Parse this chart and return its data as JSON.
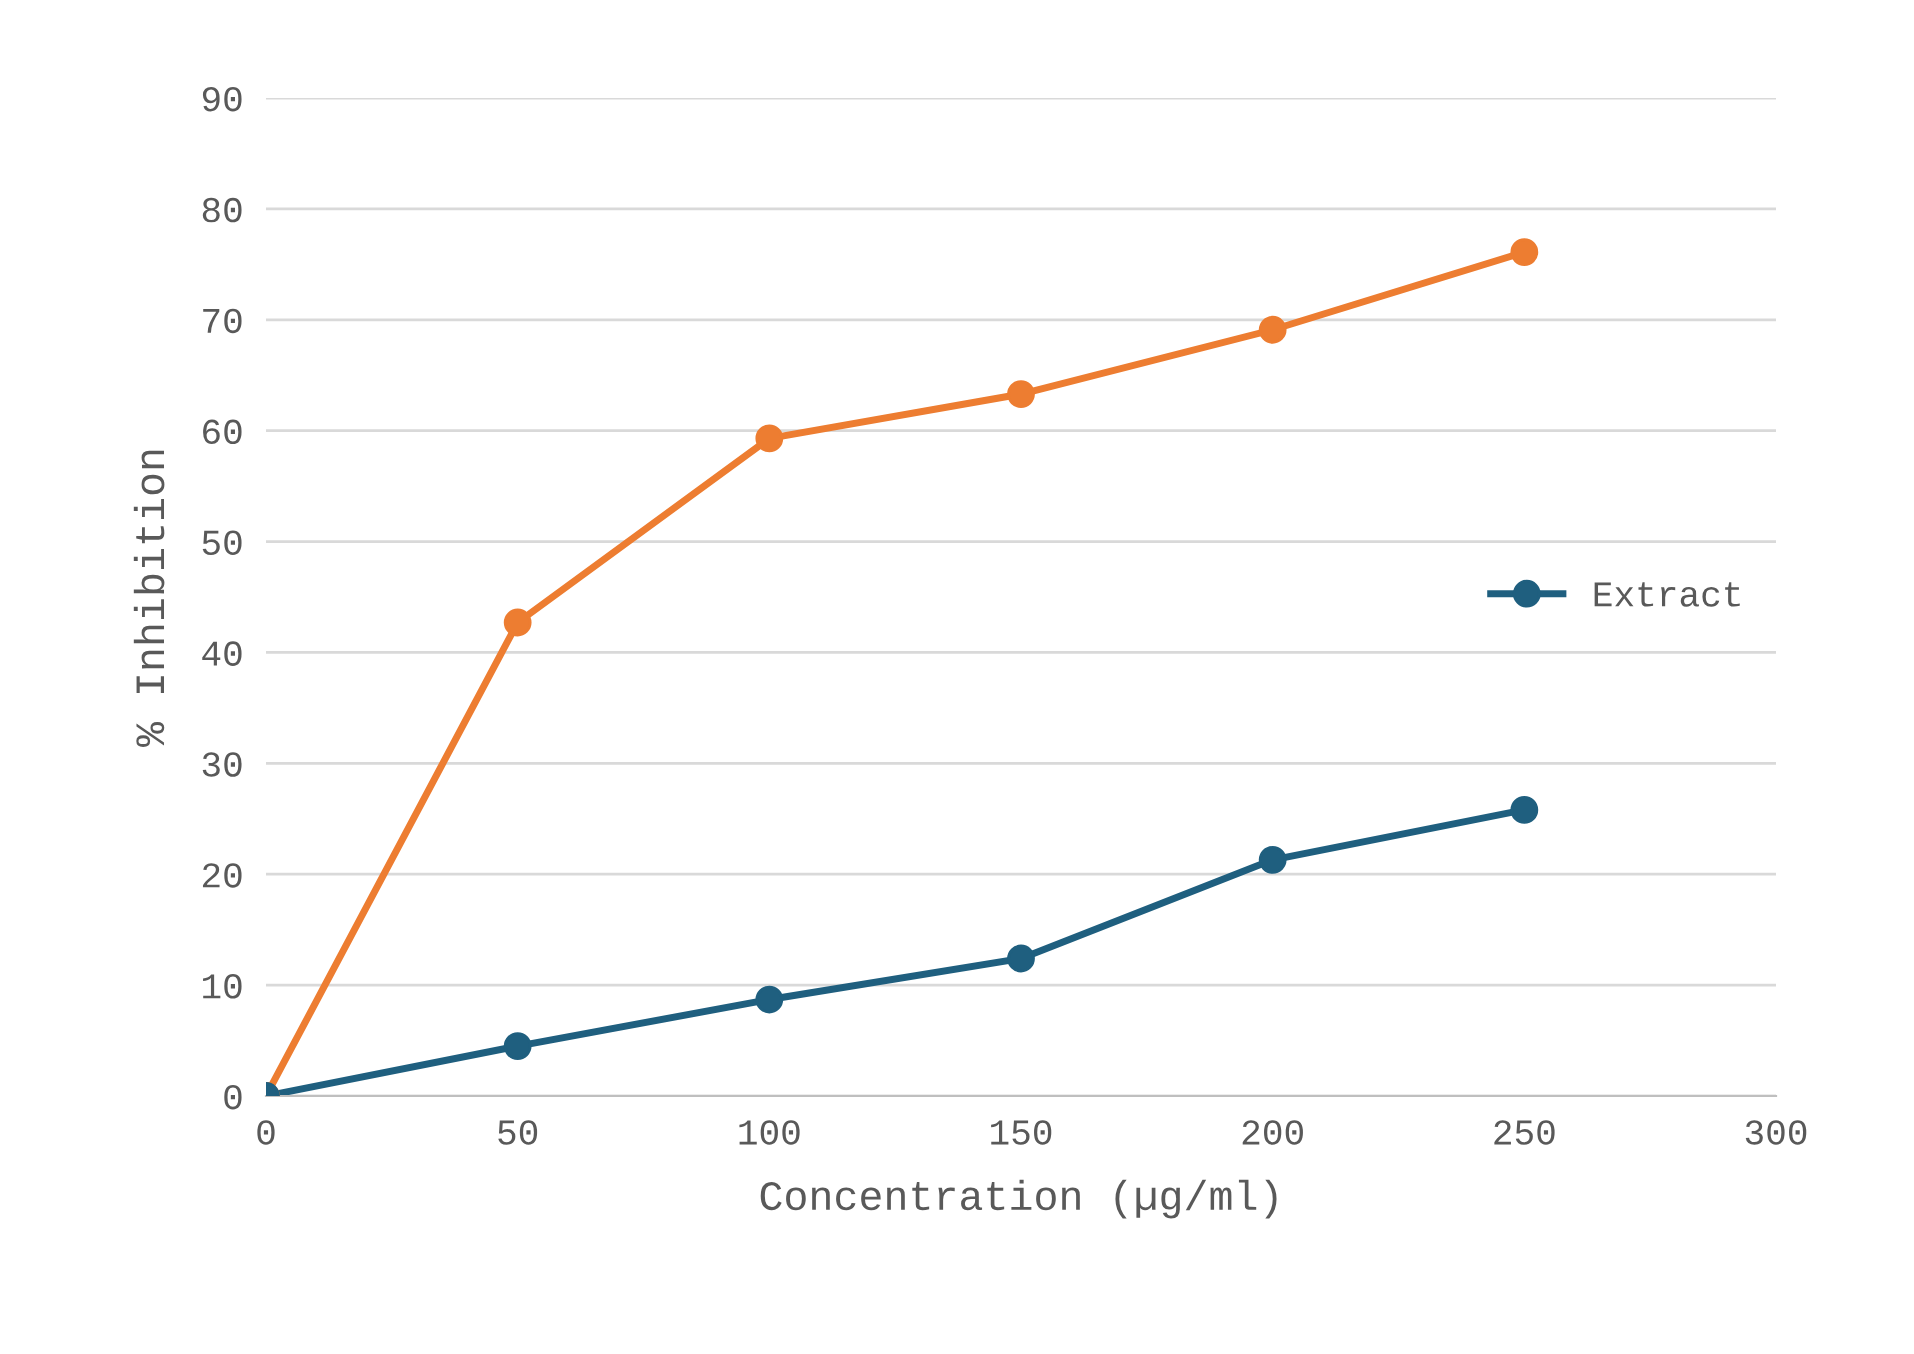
{
  "chart_data": {
    "type": "line",
    "xlabel": "Concentration (µg/ml)",
    "ylabel": "% Inhibition",
    "x": [
      0,
      50,
      100,
      150,
      200,
      250
    ],
    "series": [
      {
        "color": "#ed7d31",
        "values": [
          0,
          42.7,
          59.3,
          63.3,
          69.1,
          76.1
        ]
      },
      {
        "name": "Extract",
        "color": "#1f5f7f",
        "values": [
          0,
          4.5,
          8.7,
          12.4,
          21.3,
          25.8
        ]
      }
    ],
    "xlim": [
      0,
      300
    ],
    "xticks": [
      0,
      50,
      100,
      150,
      200,
      250,
      300
    ],
    "ylim": [
      0,
      90
    ],
    "yticks": [
      0,
      10,
      20,
      30,
      40,
      50,
      60,
      70,
      80,
      90
    ],
    "grid": "y",
    "legend": "center right",
    "marker": "circle",
    "line_style": "solid"
  }
}
